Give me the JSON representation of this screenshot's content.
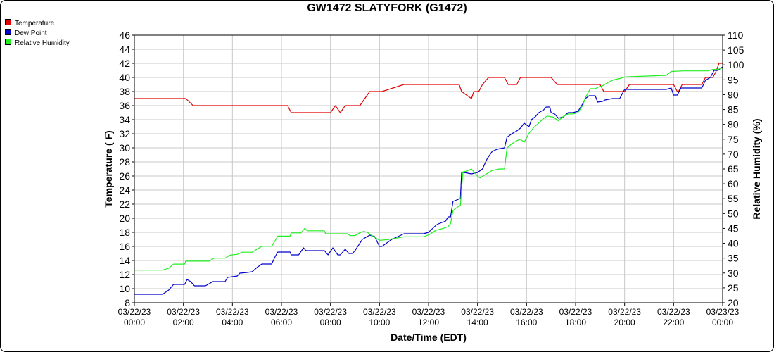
{
  "chart_data": {
    "type": "line",
    "title": "GW1472 SLATYFORK (G1472)",
    "xlabel": "Date/Time (EDT)",
    "ylabel": "Temperature ( F)",
    "y2label": "Relative Humidity (%)",
    "xlim": [
      0,
      24
    ],
    "ylim": [
      8,
      46
    ],
    "y2lim": [
      20,
      110
    ],
    "y_ticks": [
      "8",
      "10",
      "12",
      "14",
      "16",
      "18",
      "20",
      "22",
      "24",
      "26",
      "28",
      "30",
      "32",
      "34",
      "36",
      "38",
      "40",
      "42",
      "44",
      "46"
    ],
    "y2_ticks": [
      "20",
      "25",
      "30",
      "35",
      "40",
      "45",
      "50",
      "55",
      "60",
      "65",
      "70",
      "75",
      "80",
      "85",
      "90",
      "95",
      "100",
      "105",
      "110"
    ],
    "x_ticks": [
      {
        "date": "03/22/23",
        "time": "00:00"
      },
      {
        "date": "03/22/23",
        "time": "02:00"
      },
      {
        "date": "03/22/23",
        "time": "04:00"
      },
      {
        "date": "03/22/23",
        "time": "06:00"
      },
      {
        "date": "03/22/23",
        "time": "08:00"
      },
      {
        "date": "03/22/23",
        "time": "10:00"
      },
      {
        "date": "03/22/23",
        "time": "12:00"
      },
      {
        "date": "03/22/23",
        "time": "14:00"
      },
      {
        "date": "03/22/23",
        "time": "16:00"
      },
      {
        "date": "03/22/23",
        "time": "18:00"
      },
      {
        "date": "03/22/23",
        "time": "20:00"
      },
      {
        "date": "03/22/23",
        "time": "22:00"
      },
      {
        "date": "03/23/23",
        "time": "00:00"
      }
    ],
    "grid": true,
    "legend_position": "top-left",
    "series": [
      {
        "name": "Temperature",
        "axis": "left",
        "color": "#e00000",
        "points": [
          [
            0,
            37
          ],
          [
            2.1,
            37
          ],
          [
            2.4,
            36
          ],
          [
            6.25,
            36
          ],
          [
            6.4,
            35
          ],
          [
            8,
            35
          ],
          [
            8.2,
            36
          ],
          [
            8.4,
            35
          ],
          [
            8.6,
            36
          ],
          [
            9.2,
            36
          ],
          [
            9.4,
            37
          ],
          [
            9.6,
            38
          ],
          [
            10.1,
            38
          ],
          [
            11,
            39
          ],
          [
            13.25,
            39
          ],
          [
            13.35,
            38
          ],
          [
            13.75,
            37
          ],
          [
            13.85,
            38
          ],
          [
            14.05,
            38
          ],
          [
            14.2,
            39
          ],
          [
            14.45,
            40
          ],
          [
            15.1,
            40
          ],
          [
            15.25,
            39
          ],
          [
            15.6,
            39
          ],
          [
            15.75,
            40
          ],
          [
            17,
            40
          ],
          [
            17.25,
            39
          ],
          [
            19,
            39
          ],
          [
            19.15,
            38
          ],
          [
            20,
            38
          ],
          [
            20.2,
            39
          ],
          [
            22,
            39
          ],
          [
            22.15,
            38
          ],
          [
            22.2,
            38
          ],
          [
            22.35,
            39
          ],
          [
            23.15,
            39
          ],
          [
            23.3,
            40
          ],
          [
            23.6,
            40
          ],
          [
            23.75,
            41
          ],
          [
            23.85,
            42
          ],
          [
            24,
            42
          ]
        ]
      },
      {
        "name": "Dew Point",
        "axis": "left",
        "color": "#0000cc",
        "points": [
          [
            0,
            9.2
          ],
          [
            1.15,
            9.2
          ],
          [
            1.4,
            9.8
          ],
          [
            1.6,
            10.6
          ],
          [
            2.05,
            10.6
          ],
          [
            2.15,
            11.3
          ],
          [
            2.3,
            11
          ],
          [
            2.45,
            10.4
          ],
          [
            2.9,
            10.4
          ],
          [
            3.2,
            11
          ],
          [
            3.7,
            11
          ],
          [
            3.8,
            11.6
          ],
          [
            4.2,
            11.8
          ],
          [
            4.3,
            12.2
          ],
          [
            4.6,
            12.3
          ],
          [
            4.8,
            12.4
          ],
          [
            5,
            13
          ],
          [
            5.2,
            13.5
          ],
          [
            5.6,
            13.5
          ],
          [
            5.75,
            14.6
          ],
          [
            5.85,
            15.2
          ],
          [
            6.35,
            15.2
          ],
          [
            6.4,
            14.8
          ],
          [
            6.7,
            14.8
          ],
          [
            6.9,
            15.8
          ],
          [
            7,
            15.4
          ],
          [
            7.75,
            15.4
          ],
          [
            7.9,
            14.8
          ],
          [
            8.1,
            15.8
          ],
          [
            8.3,
            14.8
          ],
          [
            8.4,
            14.8
          ],
          [
            8.6,
            15.6
          ],
          [
            8.75,
            15
          ],
          [
            8.9,
            15
          ],
          [
            9,
            15.4
          ],
          [
            9.3,
            17
          ],
          [
            9.6,
            17.6
          ],
          [
            9.8,
            17.4
          ],
          [
            10,
            16
          ],
          [
            10.1,
            16
          ],
          [
            10.3,
            16.5
          ],
          [
            10.5,
            17
          ],
          [
            11,
            17.8
          ],
          [
            11.8,
            17.8
          ],
          [
            12,
            18
          ],
          [
            12.3,
            19
          ],
          [
            12.4,
            19.2
          ],
          [
            12.7,
            19.6
          ],
          [
            12.8,
            20.2
          ],
          [
            12.9,
            20.2
          ],
          [
            13,
            22.4
          ],
          [
            13.15,
            22.6
          ],
          [
            13.3,
            22.8
          ],
          [
            13.35,
            26.5
          ],
          [
            13.45,
            26.5
          ],
          [
            13.75,
            26.3
          ],
          [
            14,
            26.5
          ],
          [
            14.2,
            27
          ],
          [
            14.4,
            28.5
          ],
          [
            14.6,
            29.5
          ],
          [
            14.8,
            29.8
          ],
          [
            15.1,
            30
          ],
          [
            15.2,
            31.5
          ],
          [
            15.4,
            32
          ],
          [
            15.6,
            32.4
          ],
          [
            15.75,
            32.8
          ],
          [
            15.9,
            33.5
          ],
          [
            16.1,
            33
          ],
          [
            16.2,
            34
          ],
          [
            16.35,
            34.4
          ],
          [
            16.5,
            35
          ],
          [
            16.7,
            35.4
          ],
          [
            16.8,
            35.8
          ],
          [
            16.95,
            35.8
          ],
          [
            17,
            35
          ],
          [
            17.15,
            34.8
          ],
          [
            17.3,
            34.2
          ],
          [
            17.5,
            34.4
          ],
          [
            17.7,
            35
          ],
          [
            17.9,
            35
          ],
          [
            18.1,
            35.2
          ],
          [
            18.3,
            36.3
          ],
          [
            18.4,
            37
          ],
          [
            18.55,
            37.4
          ],
          [
            18.8,
            37.4
          ],
          [
            18.9,
            36.5
          ],
          [
            19.1,
            36.6
          ],
          [
            19.2,
            36.8
          ],
          [
            19.5,
            37
          ],
          [
            19.8,
            37
          ],
          [
            20,
            38.3
          ],
          [
            21.7,
            38.3
          ],
          [
            21.9,
            38.5
          ],
          [
            22,
            37.5
          ],
          [
            22.15,
            37.5
          ],
          [
            22.3,
            38.5
          ],
          [
            23.15,
            38.5
          ],
          [
            23.3,
            39.6
          ],
          [
            23.5,
            40
          ],
          [
            23.65,
            41
          ],
          [
            23.8,
            41
          ],
          [
            24,
            41.5
          ]
        ]
      },
      {
        "name": "Relative Humidity",
        "axis": "right",
        "color": "#22ee22",
        "points": [
          [
            0,
            31
          ],
          [
            1.15,
            31
          ],
          [
            1.4,
            31.6
          ],
          [
            1.6,
            33
          ],
          [
            2.05,
            33
          ],
          [
            2.1,
            34
          ],
          [
            3.05,
            34
          ],
          [
            3.25,
            35
          ],
          [
            3.7,
            35
          ],
          [
            3.9,
            36
          ],
          [
            4.2,
            36.3
          ],
          [
            4.4,
            37
          ],
          [
            4.8,
            37
          ],
          [
            5,
            38
          ],
          [
            5.2,
            39
          ],
          [
            5.6,
            39
          ],
          [
            5.75,
            41
          ],
          [
            5.85,
            42.4
          ],
          [
            6.35,
            42.4
          ],
          [
            6.4,
            43.5
          ],
          [
            6.8,
            43.5
          ],
          [
            6.95,
            45
          ],
          [
            7.05,
            44.2
          ],
          [
            7.75,
            44.2
          ],
          [
            7.8,
            43.2
          ],
          [
            8.7,
            43.2
          ],
          [
            8.8,
            42.6
          ],
          [
            9,
            42.6
          ],
          [
            9.15,
            43.3
          ],
          [
            9.35,
            44
          ],
          [
            9.5,
            43.7
          ],
          [
            9.65,
            42.8
          ],
          [
            9.8,
            42
          ],
          [
            10,
            41
          ],
          [
            10.3,
            41.2
          ],
          [
            10.6,
            41.6
          ],
          [
            11,
            42.2
          ],
          [
            11.8,
            42.2
          ],
          [
            12.05,
            43
          ],
          [
            12.3,
            44.4
          ],
          [
            12.6,
            45
          ],
          [
            12.8,
            45.6
          ],
          [
            12.9,
            46.6
          ],
          [
            13,
            51
          ],
          [
            13.15,
            52
          ],
          [
            13.3,
            52.8
          ],
          [
            13.4,
            64
          ],
          [
            13.6,
            64.4
          ],
          [
            13.75,
            65
          ],
          [
            14,
            62.6
          ],
          [
            14.1,
            62
          ],
          [
            14.3,
            63
          ],
          [
            14.6,
            64.5
          ],
          [
            14.9,
            65
          ],
          [
            15.1,
            65
          ],
          [
            15.2,
            72
          ],
          [
            15.4,
            73.5
          ],
          [
            15.6,
            74.5
          ],
          [
            15.75,
            75
          ],
          [
            15.9,
            74
          ],
          [
            16.1,
            77
          ],
          [
            16.3,
            79
          ],
          [
            16.5,
            80.5
          ],
          [
            16.7,
            82
          ],
          [
            16.85,
            82.8
          ],
          [
            17.1,
            82.4
          ],
          [
            17.3,
            81.2
          ],
          [
            17.5,
            82.7
          ],
          [
            17.7,
            83.5
          ],
          [
            17.9,
            83.5
          ],
          [
            18.1,
            84
          ],
          [
            18.3,
            86.5
          ],
          [
            18.4,
            89
          ],
          [
            18.6,
            92
          ],
          [
            18.8,
            92
          ],
          [
            18.95,
            92.6
          ],
          [
            19.1,
            93
          ],
          [
            19.3,
            94
          ],
          [
            19.55,
            95
          ],
          [
            19.8,
            95.4
          ],
          [
            20.05,
            96
          ],
          [
            21.7,
            96.5
          ],
          [
            21.9,
            97.8
          ],
          [
            22.4,
            98
          ],
          [
            23.4,
            98
          ],
          [
            23.6,
            98.5
          ],
          [
            23.8,
            98.5
          ],
          [
            24,
            99
          ]
        ]
      }
    ]
  }
}
